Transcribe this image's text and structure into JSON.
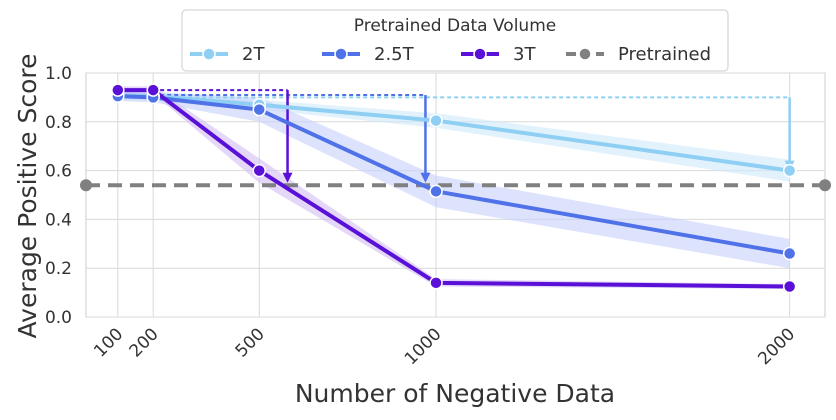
{
  "chart_data": {
    "type": "line",
    "title": "",
    "xlabel": "Number of Negative Data",
    "ylabel": "Average Positive Score",
    "x_ticks": [
      100,
      200,
      500,
      1000,
      2000
    ],
    "x_tick_labels": [
      "100",
      "200",
      "500",
      "1000",
      "2000"
    ],
    "xlim": [
      10,
      2100
    ],
    "ylim": [
      0,
      1
    ],
    "y_ticks": [
      0,
      0.2,
      0.4,
      0.6,
      0.8,
      1.0
    ],
    "y_tick_labels": [
      "0.0",
      "0.2",
      "0.4",
      "0.6",
      "0.8",
      "1.0"
    ],
    "grid": true,
    "legend": {
      "title": "Pretrained Data Volume",
      "placement": "top-center",
      "entries": [
        "2T",
        "2.5T",
        "3T",
        "Pretrained"
      ]
    },
    "series": [
      {
        "name": "2T",
        "color": "#8ecff3",
        "band_color": "#cfeafb",
        "x": [
          100,
          200,
          500,
          1000,
          2000
        ],
        "values": [
          0.91,
          0.905,
          0.87,
          0.805,
          0.6
        ],
        "lower": [
          0.89,
          0.885,
          0.85,
          0.775,
          0.555
        ],
        "upper": [
          0.93,
          0.925,
          0.89,
          0.835,
          0.645
        ]
      },
      {
        "name": "2.5T",
        "color": "#4f72e8",
        "band_color": "#c7d1fb",
        "x": [
          100,
          200,
          500,
          1000,
          2000
        ],
        "values": [
          0.905,
          0.9,
          0.85,
          0.515,
          0.26
        ],
        "lower": [
          0.885,
          0.88,
          0.8,
          0.45,
          0.2
        ],
        "upper": [
          0.925,
          0.92,
          0.9,
          0.58,
          0.32
        ]
      },
      {
        "name": "3T",
        "color": "#5a10d6",
        "band_color": "#d2bdf3",
        "x": [
          100,
          200,
          500,
          1000,
          2000
        ],
        "values": [
          0.93,
          0.93,
          0.6,
          0.14,
          0.125
        ],
        "lower": [
          0.915,
          0.915,
          0.55,
          0.125,
          0.115
        ],
        "upper": [
          0.945,
          0.945,
          0.65,
          0.155,
          0.135
        ]
      },
      {
        "name": "Pretrained",
        "color": "#808080",
        "style": "dashed-horizontal",
        "value": 0.54
      }
    ],
    "annotations": [
      {
        "series": "2T",
        "from_x": 200,
        "to_x": 2000,
        "level": 0.9,
        "arrow_x": 2000,
        "arrow_to": 0.6,
        "color": "#8ecff3"
      },
      {
        "series": "2.5T",
        "from_x": 200,
        "to_x": 970,
        "level": 0.91,
        "arrow_x": 970,
        "arrow_to": 0.55,
        "color": "#4f72e8"
      },
      {
        "series": "3T",
        "from_x": 200,
        "to_x": 580,
        "level": 0.93,
        "arrow_x": 580,
        "arrow_to": 0.55,
        "color": "#5a10d6"
      }
    ]
  }
}
